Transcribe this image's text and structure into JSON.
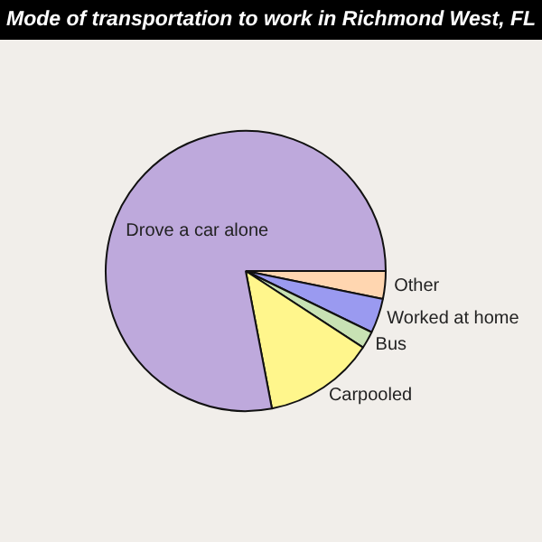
{
  "chart_data": {
    "type": "pie",
    "title": "Mode of transportation to work in Richmond West, FL",
    "categories": [
      "Other",
      "Worked at home",
      "Bus",
      "Carpooled",
      "Drove a car alone"
    ],
    "values": [
      3.2,
      4,
      2,
      12.8,
      78
    ],
    "colors": [
      "#ffd6b0",
      "#9a9af0",
      "#c8e2b4",
      "#fff68c",
      "#bea9dc"
    ],
    "legend": false
  }
}
